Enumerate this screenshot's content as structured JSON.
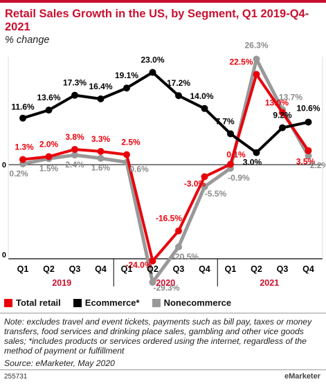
{
  "header": {
    "title": "Retail Sales Growth in the US, by Segment, Q1 2019-Q4-2021",
    "subtitle": "% change"
  },
  "chart_data": {
    "type": "line",
    "categories": [
      "Q1",
      "Q2",
      "Q3",
      "Q4",
      "Q1",
      "Q2",
      "Q3",
      "Q4",
      "Q1",
      "Q2",
      "Q3",
      "Q4"
    ],
    "year_groups": [
      {
        "label": "2019",
        "start": 0,
        "end": 3
      },
      {
        "label": "2020",
        "start": 4,
        "end": 7
      },
      {
        "label": "2021",
        "start": 8,
        "end": 11
      }
    ],
    "y_tick_labels": [
      "0",
      "0"
    ],
    "series": [
      {
        "name": "Total retail",
        "color": "#e8000b",
        "values": [
          1.3,
          2.0,
          3.8,
          3.3,
          2.5,
          -24.0,
          -16.5,
          -3.0,
          0.1,
          22.5,
          13.0,
          3.5
        ],
        "labels": [
          "1.3%",
          "2.0%",
          "3.8%",
          "3.3%",
          "2.5%",
          "-24.0%",
          "-16.5%",
          "-3.0%",
          "0.1%",
          "22.5%",
          "13.0%",
          "3.5%"
        ]
      },
      {
        "name": "Ecommerce*",
        "color": "#000000",
        "values": [
          11.6,
          13.6,
          17.3,
          16.4,
          19.1,
          23.0,
          17.2,
          14.0,
          7.7,
          3.0,
          9.2,
          10.6
        ],
        "labels": [
          "11.6%",
          "13.6%",
          "17.3%",
          "16.4%",
          "19.1%",
          "23.0%",
          "17.2%",
          "14.0%",
          "7.7%",
          "3.0%",
          "9.2%",
          "10.6%"
        ]
      },
      {
        "name": "Nonecommerce",
        "color": "#999999",
        "values": [
          0.2,
          1.5,
          2.4,
          1.6,
          0.6,
          -29.3,
          -20.5,
          -5.5,
          -0.9,
          26.3,
          13.7,
          2.2
        ],
        "labels": [
          "0.2%",
          "1.5%",
          "2.4%",
          "1.6%",
          "0.6%",
          "-29.3%",
          "-20.5%",
          "-5.5%",
          "-0.9%",
          "26.3%",
          "13.7%",
          "2.2%"
        ]
      }
    ]
  },
  "legend": [
    {
      "label": "Total retail",
      "color": "#e8000b"
    },
    {
      "label": "Ecommerce*",
      "color": "#000000"
    },
    {
      "label": "Nonecommerce",
      "color": "#999999"
    }
  ],
  "note": "Note: excludes travel and event tickets, payments such as bill pay, taxes or money transfers, food services and drinking place sales, gambling and other vice goods sales; *includes products or services ordered using the internet, regardless of the method of payment or fulfillment",
  "source": "Source: eMarketer, May 2020",
  "chart_id": "255731",
  "brand": "eMarketer"
}
